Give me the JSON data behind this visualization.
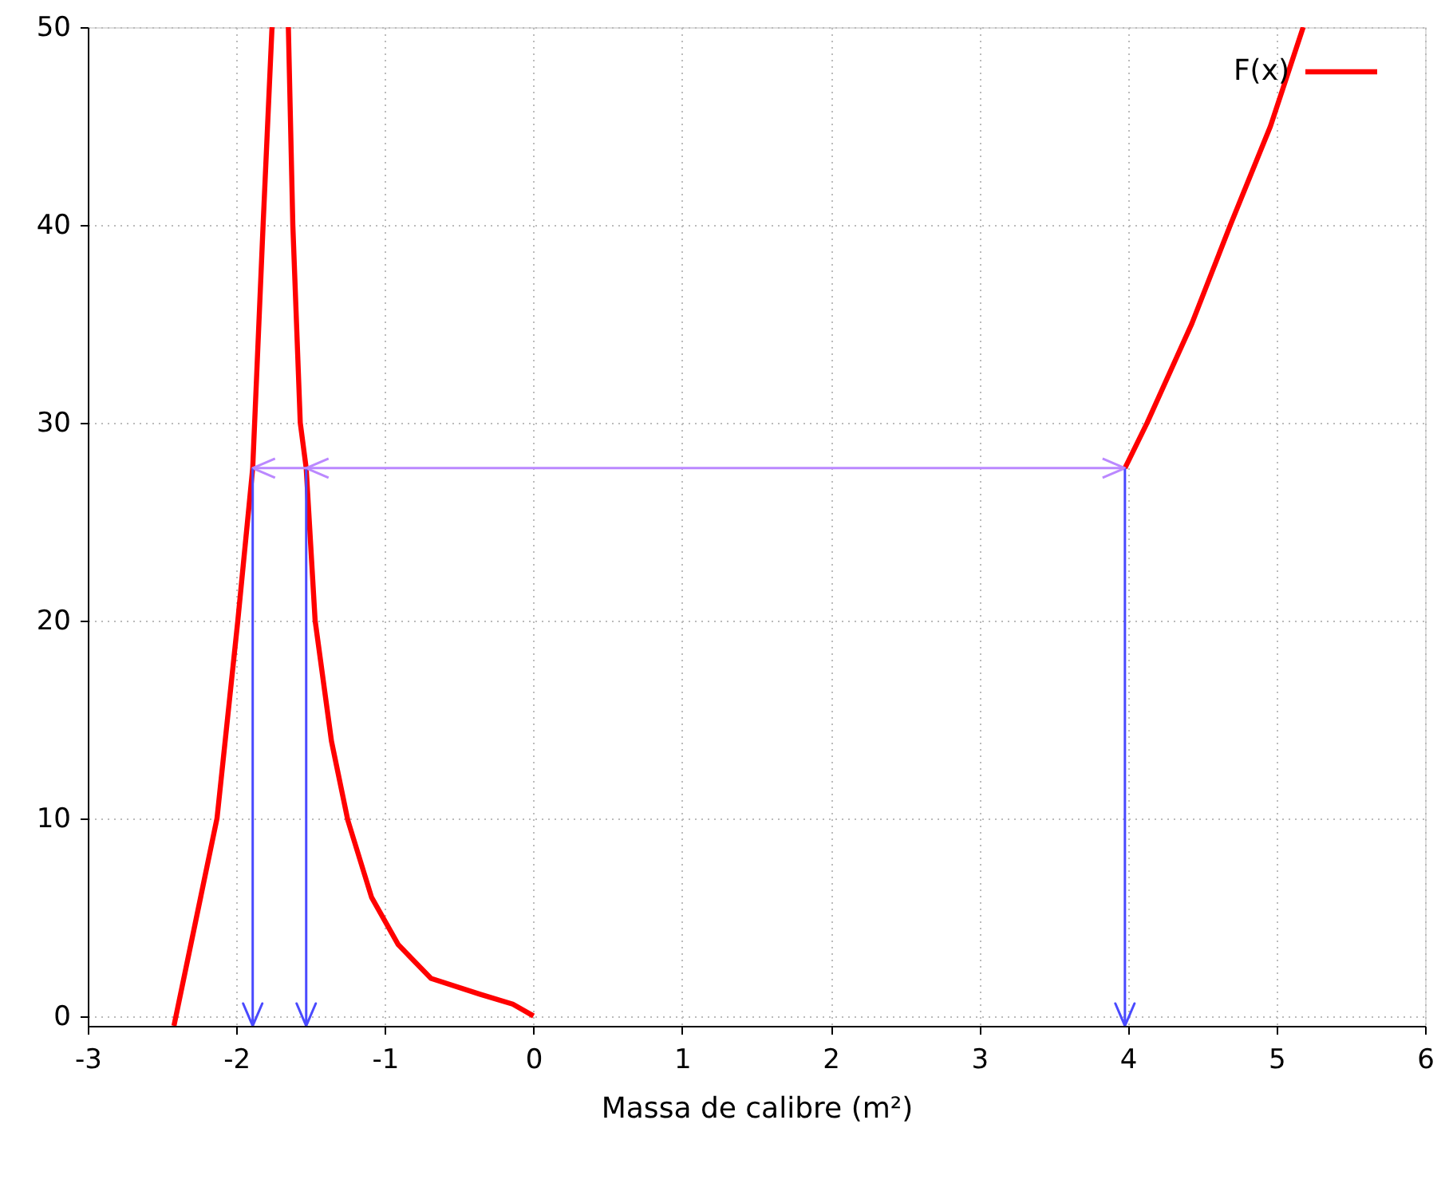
{
  "chart_data": {
    "type": "line",
    "xlabel": "Massa de calibre (m²)",
    "xlim": [
      -3,
      6
    ],
    "ylim": [
      -0.5,
      50
    ],
    "xticks": [
      -3,
      -2,
      -1,
      0,
      1,
      2,
      3,
      4,
      5,
      6
    ],
    "yticks": [
      0,
      10,
      20,
      30,
      40,
      50
    ],
    "grid": true,
    "legend": "top right",
    "series": [
      {
        "name": "F(x)",
        "color": "#ff0000",
        "x": [
          -2.42,
          -2.13,
          -1.99,
          -1.89,
          -1.82,
          -1.76,
          null,
          -1.65,
          -1.62,
          -1.57,
          -1.53,
          -1.47,
          -1.36,
          -1.25,
          -1.09,
          -0.91,
          -0.69,
          -0.36,
          -0.14,
          0,
          null,
          3.98,
          4.13,
          4.43,
          4.69,
          4.96,
          5.18
        ],
        "values": [
          -0.5,
          10,
          20,
          27.7,
          40,
          50,
          null,
          50,
          40,
          30,
          27.7,
          20,
          13.9,
          9.9,
          6.0,
          3.6,
          1.9,
          1.1,
          0.6,
          0,
          null,
          27.7,
          30,
          35,
          40,
          45,
          50
        ]
      }
    ],
    "ref_lines": [
      {
        "axis": "y",
        "value": 27.7,
        "color": "#bb88ff"
      }
    ]
  }
}
